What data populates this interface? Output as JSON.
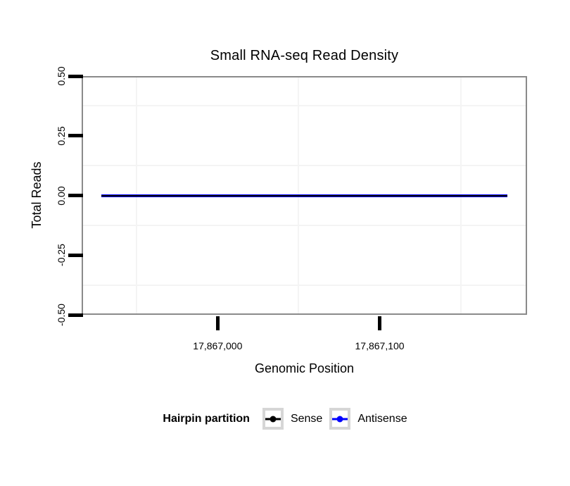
{
  "title": "Small RNA-seq Read Density",
  "chart_data": {
    "type": "line",
    "title": "Small RNA-seq Read Density",
    "xlabel": "Genomic Position",
    "ylabel": "Total Reads",
    "xlim": [
      17866916,
      17867191
    ],
    "ylim": [
      -0.5,
      0.5
    ],
    "x_ticks": [
      {
        "value": 17867000,
        "label": "17,867,000"
      },
      {
        "value": 17867100,
        "label": "17,867,100"
      }
    ],
    "y_ticks": [
      {
        "value": 0.5,
        "label": "0.50"
      },
      {
        "value": 0.25,
        "label": "0.25"
      },
      {
        "value": 0.0,
        "label": "0.00"
      },
      {
        "value": -0.25,
        "label": "-0.25"
      },
      {
        "value": -0.5,
        "label": "-0.50"
      }
    ],
    "x_minor": [
      17866950,
      17867050,
      17867150
    ],
    "y_minor": [
      0.375,
      0.125,
      -0.125,
      -0.375
    ],
    "grid": "minor-only",
    "legend_position": "bottom",
    "series": [
      {
        "name": "Sense",
        "color": "#000000",
        "x_start": 17866928,
        "x_end": 17867179,
        "value": 0
      },
      {
        "name": "Antisense",
        "color": "#0000ff",
        "x_start": 17866928,
        "x_end": 17867179,
        "value": 0
      }
    ],
    "legend": {
      "title": "Hairpin partition"
    }
  },
  "colors": {
    "panel_border": "#8a8a8a",
    "grid_minor": "#f4f4f4",
    "tick": "#000000",
    "legend_key_border": "#d6d6d6"
  }
}
